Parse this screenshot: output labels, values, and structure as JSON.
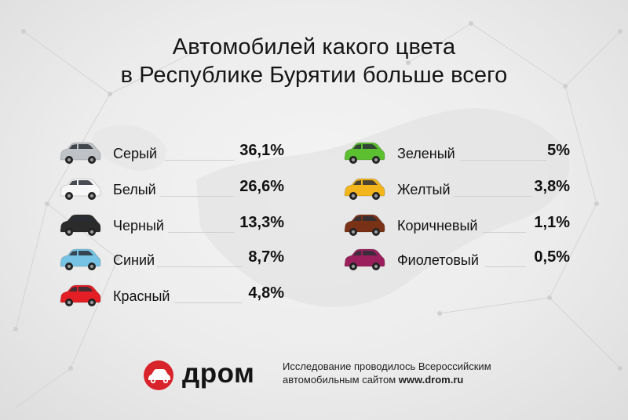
{
  "title": {
    "line1": "Автомобилей какого цвета",
    "line2": "в Республике Бурятии больше всего"
  },
  "colors_left": [
    {
      "name": "Серый",
      "value": "36,1%",
      "car_color": "#bfc2c6"
    },
    {
      "name": "Белый",
      "value": "26,6%",
      "car_color": "#f7f7f7"
    },
    {
      "name": "Черный",
      "value": "13,3%",
      "car_color": "#2b2b2b"
    },
    {
      "name": "Синий",
      "value": "8,7%",
      "car_color": "#76c3e6"
    },
    {
      "name": "Красный",
      "value": "4,8%",
      "car_color": "#e31e24"
    }
  ],
  "colors_right": [
    {
      "name": "Зеленый",
      "value": "5%",
      "car_color": "#5bbf2f"
    },
    {
      "name": "Желтый",
      "value": "3,8%",
      "car_color": "#f2b51b"
    },
    {
      "name": "Коричневый",
      "value": "1,1%",
      "car_color": "#7a3217"
    },
    {
      "name": "Фиолетовый",
      "value": "0,5%",
      "car_color": "#9b1f5d"
    }
  ],
  "brand": {
    "name": "дром",
    "accent": "#d9232a"
  },
  "footer": {
    "line1": "Исследование проводилось Всероссийским",
    "line2_prefix": "автомобильным сайтом ",
    "line2_site": "www.drom.ru"
  }
}
